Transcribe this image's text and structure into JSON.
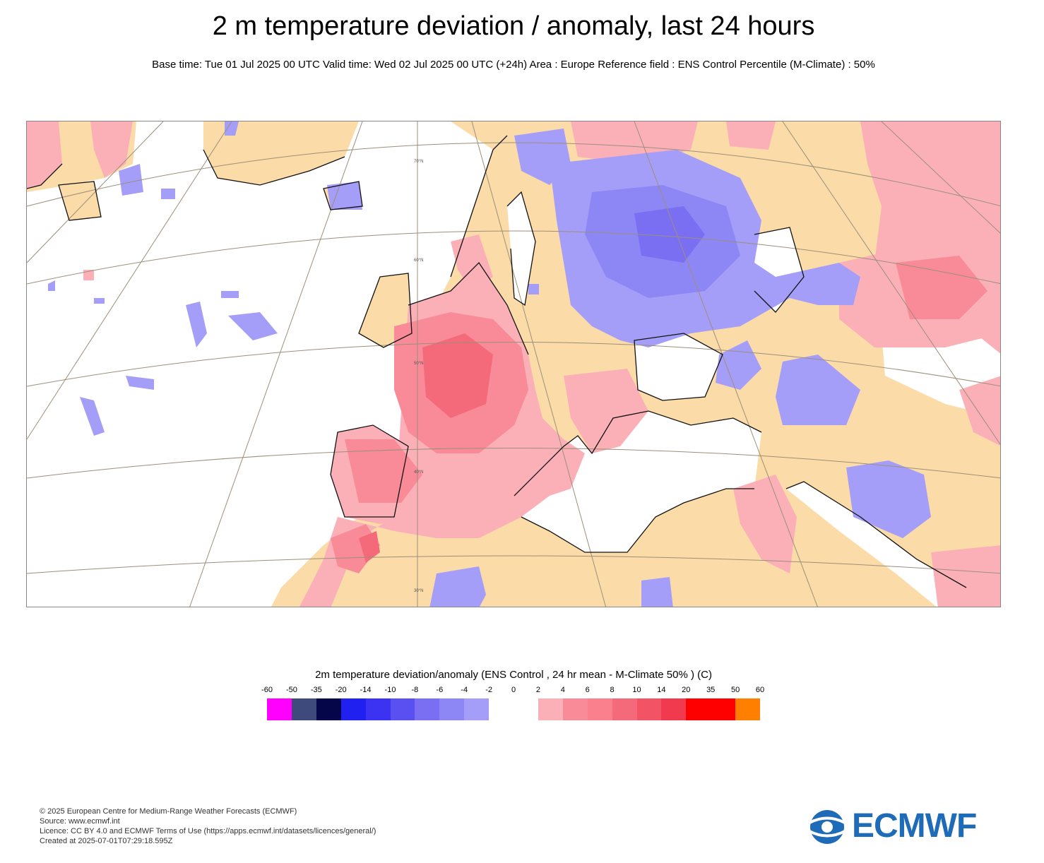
{
  "header": {
    "title": "2 m temperature deviation / anomaly, last 24 hours",
    "subtitle": "Base time: Tue 01 Jul 2025 00 UTC Valid time: Wed 02 Jul 2025 00 UTC (+24h) Area : Europe Reference field : ENS Control Percentile (M-Climate) : 50%"
  },
  "map": {
    "lat_labels": [
      "70°N",
      "60°N",
      "50°N",
      "40°N",
      "30°N"
    ],
    "colors": {
      "land": "#fbdca8",
      "sea": "#ffffff",
      "warm_light": "#fbb0b8",
      "warm_mid": "#f98b98",
      "warm_strong": "#f46a7a",
      "cold_light": "#a59ef8",
      "cold_mid": "#8d86f5",
      "cold_strong": "#7a6ff2",
      "coast": "#111111",
      "grid": "#9c8f7a"
    }
  },
  "legend": {
    "title": "2m temperature deviation/anomaly (ENS Control , 24 hr mean - M-Climate 50% ) (C)",
    "ticks": [
      "-60",
      "-50",
      "-35",
      "-20",
      "-14",
      "-10",
      "-8",
      "-6",
      "-4",
      "-2",
      "0",
      "2",
      "4",
      "6",
      "8",
      "10",
      "14",
      "20",
      "35",
      "50",
      "60"
    ],
    "colors": [
      "#ff00ff",
      "#3e4a7c",
      "#05054a",
      "#2020f0",
      "#3c32f2",
      "#5a50f2",
      "#7a6ff2",
      "#8d86f5",
      "#a59ef8",
      "#ffffff",
      "#ffffff",
      "#fbb0b8",
      "#f98b98",
      "#f9808c",
      "#f46a7a",
      "#f25466",
      "#f23a4f",
      "#ff0000",
      "#ff0000",
      "#ff8000"
    ]
  },
  "footer": {
    "line1": "© 2025 European Centre for Medium-Range Weather Forecasts (ECMWF)",
    "line2": "Source: www.ecmwf.int",
    "line3": "Licence: CC BY 4.0 and ECMWF Terms of Use (https://apps.ecmwf.int/datasets/licences/general/)",
    "line4": "Created at 2025-07-01T07:29:18.595Z"
  },
  "logo": {
    "text": "ECMWF",
    "color": "#1e6bb8"
  }
}
